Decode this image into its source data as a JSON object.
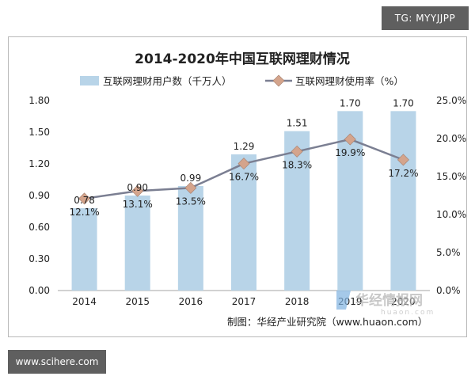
{
  "watermark_top": "TG: MYYJJPP",
  "watermark_bottom": "www.scihere.com",
  "source_note": "制图：华经产业研究院（www.huaon.com）",
  "logo_text": "华经情报网",
  "logo_subtext": "huaon.com",
  "colors": {
    "bar": "#b8d4e8",
    "line": "#7b7f92",
    "marker": "#d4a48c",
    "axis_text": "#222222"
  },
  "chart_data": {
    "type": "bar",
    "title": "2014-2020年中国互联网理财情况",
    "categories": [
      "2014",
      "2015",
      "2016",
      "2017",
      "2018",
      "2019",
      "2020"
    ],
    "series": [
      {
        "name": "互联网理财用户数（千万人）",
        "type": "bar",
        "axis": "left",
        "values": [
          0.78,
          0.9,
          0.99,
          1.29,
          1.51,
          1.7,
          1.7
        ],
        "labels": [
          "0.78",
          "0.90",
          "0.99",
          "1.29",
          "1.51",
          "1.70",
          "1.70"
        ]
      },
      {
        "name": "互联网理财使用率（%）",
        "type": "line",
        "axis": "right",
        "values": [
          12.1,
          13.1,
          13.5,
          16.7,
          18.3,
          19.9,
          17.2
        ],
        "labels": [
          "12.1%",
          "13.1%",
          "13.5%",
          "16.7%",
          "18.3%",
          "19.9%",
          "17.2%"
        ]
      }
    ],
    "y_left": {
      "min": 0,
      "max": 1.8,
      "ticks": [
        0,
        0.3,
        0.6,
        0.9,
        1.2,
        1.5,
        1.8
      ],
      "tick_labels": [
        "0.00",
        "0.30",
        "0.60",
        "0.90",
        "1.20",
        "1.50",
        "1.80"
      ]
    },
    "y_right": {
      "min": 0,
      "max": 25,
      "ticks": [
        0,
        5,
        10,
        15,
        20,
        25
      ],
      "tick_labels": [
        "0.0%",
        "5.0%",
        "10.0%",
        "15.0%",
        "20.0%",
        "25.0%"
      ]
    },
    "grid": false,
    "legend_position": "top"
  }
}
